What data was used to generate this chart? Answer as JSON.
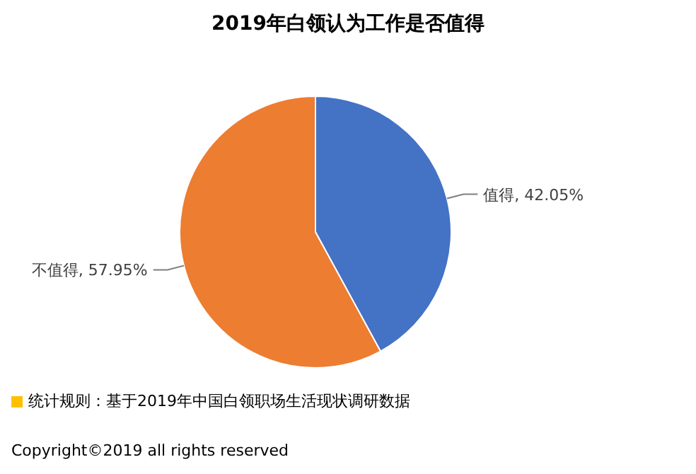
{
  "chart_data": {
    "type": "pie",
    "title": "2019年白领认为工作是否值得",
    "categories": [
      "值得",
      "不值得"
    ],
    "values": [
      42.05,
      57.95
    ],
    "value_labels": [
      "42.05%",
      "57.95%"
    ],
    "colors": [
      "#4472c4",
      "#ed7d31"
    ],
    "legend": false,
    "annotations": [
      "统计规则：基于2019年中国白领职场生活现状调研数据",
      "Copyright©2019 all rights reserved"
    ]
  }
}
